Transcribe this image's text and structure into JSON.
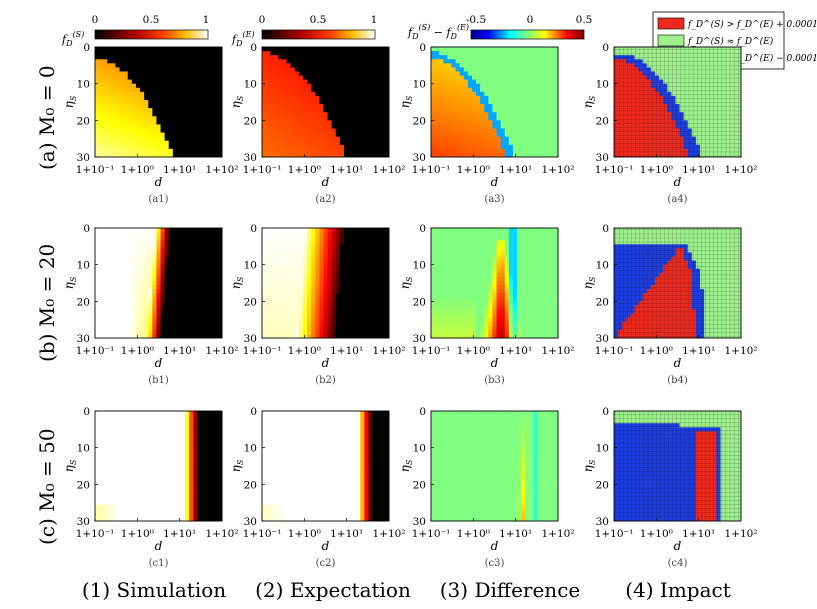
{
  "figure": {
    "row_labels": [
      "(a)  M₀ = 0",
      "(b)  M₀ = 20",
      "(c)  M₀ = 50"
    ],
    "column_labels": [
      "(1) Simulation",
      "(2) Expectation",
      "(3) Difference",
      "(4) Impact"
    ],
    "panel_labels": [
      [
        "(a1)",
        "(a2)",
        "(a3)",
        "(a4)"
      ],
      [
        "(b1)",
        "(b2)",
        "(b3)",
        "(b4)"
      ],
      [
        "(c1)",
        "(c2)",
        "(c3)",
        "(c4)"
      ]
    ],
    "x_ticks": [
      "1+10⁻¹",
      "1+10⁰",
      "1+10¹",
      "1+10²"
    ],
    "y_ticks": [
      "0",
      "10",
      "20",
      "30"
    ],
    "xlabel": "d",
    "ylabel": "ηS",
    "colorbars": [
      {
        "label": "f_D^(S)",
        "ticks": [
          "0",
          "0.5",
          "1"
        ],
        "colormap": "hot"
      },
      {
        "label": "f_D^(E)",
        "ticks": [
          "0",
          "0.5",
          "1"
        ],
        "colormap": "hot"
      },
      {
        "label": "f_D^(S) − f_D^(E)",
        "ticks": [
          "-0.5",
          "0",
          "0.5"
        ],
        "colormap": "jet"
      }
    ],
    "legend": {
      "placement": "top-right",
      "entries": [
        {
          "label": "f_D^(S) > f_D^(E) + 0.0001",
          "color": "#ee2a1f"
        },
        {
          "label": "f_D^(S) ≈ f_D^(E)",
          "color": "#9ef08c"
        },
        {
          "label": "f_D^(S) < f_D^(E) − 0.0001",
          "color": "#1f3fe0"
        }
      ]
    }
  },
  "chart_data": [
    {
      "type": "heatmap",
      "panel": "a1",
      "series_kind": "simulation",
      "x_range": [
        "1+10^-1",
        "1+10^2"
      ],
      "y_range": [
        0,
        30
      ],
      "value_range": [
        0,
        1
      ],
      "colormap": "hot",
      "boundary_d_log10": [
        -1,
        -0.2,
        0.2,
        0.5,
        0.7,
        0.8,
        0.85
      ],
      "boundary_eta": [
        4,
        6,
        10,
        15,
        20,
        25,
        30
      ],
      "value_inside_low_eta": 0.65,
      "value_inside_high_eta": 0.85,
      "value_outside": 0.0
    },
    {
      "type": "heatmap",
      "panel": "a2",
      "series_kind": "expectation",
      "x_range": [
        "1+10^-1",
        "1+10^2"
      ],
      "y_range": [
        0,
        30
      ],
      "value_range": [
        0,
        1
      ],
      "colormap": "hot",
      "boundary_d_log10": [
        -1,
        -0.3,
        0.2,
        0.55,
        0.75,
        0.85,
        0.9
      ],
      "boundary_eta": [
        1,
        4,
        10,
        15,
        20,
        25,
        30
      ],
      "value_inside_low_eta": 0.45,
      "value_inside_high_eta": 0.6,
      "value_outside": 0.0
    },
    {
      "type": "heatmap",
      "panel": "a3",
      "series_kind": "difference",
      "x_range": [
        "1+10^-1",
        "1+10^2"
      ],
      "y_range": [
        0,
        30
      ],
      "value_range": [
        -0.5,
        0.5
      ],
      "colormap": "jet",
      "description_values": {
        "inside_region": 0.25,
        "band_edge": -0.2,
        "outside": 0.0
      }
    },
    {
      "type": "heatmap",
      "panel": "a4",
      "series_kind": "impact",
      "categories": [
        "greater",
        "approx_equal",
        "less"
      ],
      "dominant": "greater in lower-left region, less in a thin band along boundary, approx_equal elsewhere"
    },
    {
      "type": "heatmap",
      "panel": "b1",
      "series_kind": "simulation",
      "x_range": [
        "1+10^-1",
        "1+10^2"
      ],
      "y_range": [
        0,
        30
      ],
      "value_range": [
        0,
        1
      ],
      "colormap": "hot",
      "transition_d_log10_at_eta0": 0.75,
      "transition_d_log10_at_eta30": 0.55,
      "value_left": 1.0,
      "value_right": 0.0
    },
    {
      "type": "heatmap",
      "panel": "b2",
      "series_kind": "expectation",
      "x_range": [
        "1+10^-1",
        "1+10^2"
      ],
      "y_range": [
        0,
        30
      ],
      "value_range": [
        0,
        1
      ],
      "colormap": "hot",
      "transition_d_log10_at_eta0": 0.9,
      "transition_d_log10_at_eta30": 0.7,
      "value_left": 1.0,
      "value_right": 0.0
    },
    {
      "type": "heatmap",
      "panel": "b3",
      "series_kind": "difference",
      "x_range": [
        "1+10^-1",
        "1+10^2"
      ],
      "y_range": [
        0,
        30
      ],
      "value_range": [
        -0.5,
        0.5
      ],
      "colormap": "jet",
      "peak_value": 0.4,
      "peak_d_log10": 0.65,
      "peak_eta": 25
    },
    {
      "type": "heatmap",
      "panel": "b4",
      "series_kind": "impact",
      "categories": [
        "greater",
        "approx_equal",
        "less"
      ]
    },
    {
      "type": "heatmap",
      "panel": "c1",
      "series_kind": "simulation",
      "x_range": [
        "1+10^-1",
        "1+10^2"
      ],
      "y_range": [
        0,
        30
      ],
      "value_range": [
        0,
        1
      ],
      "colormap": "hot",
      "transition_d_log10": 1.2,
      "value_left": 1.0,
      "value_right": 0.0
    },
    {
      "type": "heatmap",
      "panel": "c2",
      "series_kind": "expectation",
      "x_range": [
        "1+10^-1",
        "1+10^2"
      ],
      "y_range": [
        0,
        30
      ],
      "value_range": [
        0,
        1
      ],
      "colormap": "hot",
      "transition_d_log10": 1.35,
      "value_left": 1.0,
      "value_right": 0.0
    },
    {
      "type": "heatmap",
      "panel": "c3",
      "series_kind": "difference",
      "x_range": [
        "1+10^-1",
        "1+10^2"
      ],
      "y_range": [
        0,
        30
      ],
      "value_range": [
        -0.5,
        0.5
      ],
      "colormap": "jet",
      "peak_value": 0.3,
      "peak_d_log10": 1.15,
      "peak_eta": 30
    },
    {
      "type": "heatmap",
      "panel": "c4",
      "series_kind": "impact",
      "categories": [
        "greater",
        "approx_equal",
        "less"
      ]
    }
  ]
}
